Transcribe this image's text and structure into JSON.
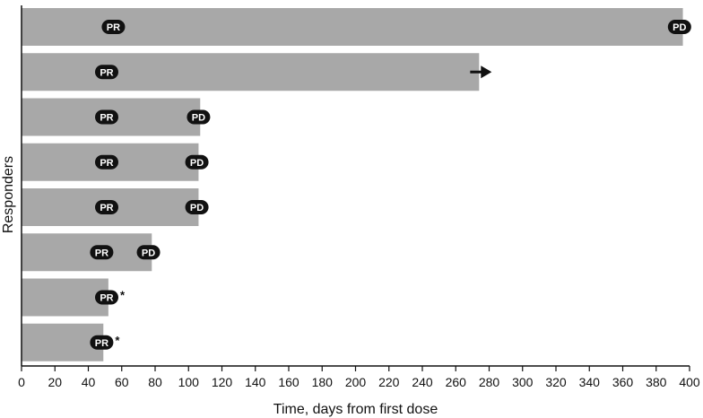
{
  "chart_data": {
    "type": "bar",
    "orientation": "horizontal",
    "xlabel": "Time, days from first dose",
    "ylabel": "Responders",
    "xlim": [
      0,
      400
    ],
    "xticks": [
      0,
      20,
      40,
      60,
      80,
      100,
      120,
      140,
      160,
      180,
      200,
      220,
      240,
      260,
      280,
      300,
      320,
      340,
      360,
      380,
      400
    ],
    "grid": false,
    "bar_color": "#a8a8a8",
    "badge_color": "#111111",
    "responders": [
      {
        "duration": 396,
        "ongoing": false,
        "annotations": [
          {
            "label": "PR",
            "day": 55
          },
          {
            "label": "PD",
            "day": 394
          }
        ]
      },
      {
        "duration": 274,
        "ongoing": true,
        "arrow_icon": "arrow-right-icon",
        "annotations": [
          {
            "label": "PR",
            "day": 51
          }
        ]
      },
      {
        "duration": 107,
        "ongoing": false,
        "annotations": [
          {
            "label": "PR",
            "day": 51
          },
          {
            "label": "PD",
            "day": 106
          }
        ]
      },
      {
        "duration": 106,
        "ongoing": false,
        "annotations": [
          {
            "label": "PR",
            "day": 51
          },
          {
            "label": "PD",
            "day": 105
          }
        ]
      },
      {
        "duration": 106,
        "ongoing": false,
        "annotations": [
          {
            "label": "PR",
            "day": 51
          },
          {
            "label": "PD",
            "day": 105
          }
        ]
      },
      {
        "duration": 78,
        "ongoing": false,
        "annotations": [
          {
            "label": "PR",
            "day": 48
          },
          {
            "label": "PD",
            "day": 76
          }
        ]
      },
      {
        "duration": 52,
        "ongoing": false,
        "marker": "*",
        "annotations": [
          {
            "label": "PR",
            "day": 51
          }
        ]
      },
      {
        "duration": 49,
        "ongoing": false,
        "marker": "*",
        "annotations": [
          {
            "label": "PR",
            "day": 48
          }
        ]
      }
    ]
  }
}
